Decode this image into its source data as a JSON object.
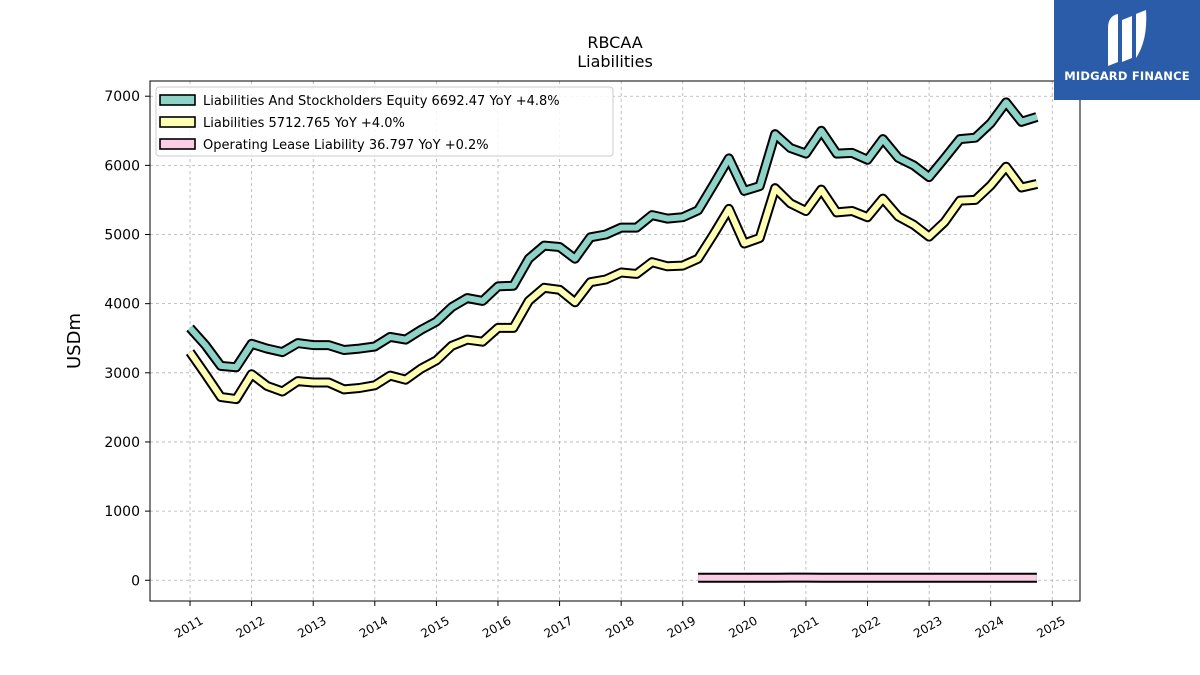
{
  "brand": {
    "name": "MIDGARD FINANCE"
  },
  "colors": {
    "equity": "#8dd3c7",
    "liabilities": "#ffffb3",
    "lease": "#fccde5",
    "logo_bg": "#2a5caa"
  },
  "chart_data": {
    "type": "line",
    "title": "RBCAA",
    "subtitle": "Liabilities",
    "ylabel": "USDm",
    "xlabel": "",
    "ylim": [
      -300,
      7220
    ],
    "xlim": [
      2010.35,
      2025.45
    ],
    "y_ticks": [
      0,
      1000,
      2000,
      3000,
      4000,
      5000,
      6000,
      7000
    ],
    "x_ticks": [
      "2011",
      "2012",
      "2013",
      "2014",
      "2015",
      "2016",
      "2017",
      "2018",
      "2019",
      "2020",
      "2021",
      "2022",
      "2023",
      "2024",
      "2025"
    ],
    "grid": true,
    "legend_position": "top-left",
    "legend": [
      "Liabilities And Stockholders Equity  6692.47 YoY +4.8%",
      "Liabilities  5712.765 YoY +4.0%",
      "Operating Lease Liability  36.797 YoY +0.2%"
    ],
    "series": [
      {
        "name": "Liabilities And Stockholders Equity",
        "x": [
          2011.0,
          2011.25,
          2011.5,
          2011.75,
          2012.0,
          2012.25,
          2012.5,
          2012.75,
          2013.0,
          2013.25,
          2013.5,
          2013.75,
          2014.0,
          2014.25,
          2014.5,
          2014.75,
          2015.0,
          2015.25,
          2015.5,
          2015.75,
          2016.0,
          2016.25,
          2016.5,
          2016.75,
          2017.0,
          2017.25,
          2017.5,
          2017.75,
          2018.0,
          2018.25,
          2018.5,
          2018.75,
          2019.0,
          2019.25,
          2019.5,
          2019.75,
          2020.0,
          2020.25,
          2020.5,
          2020.75,
          2021.0,
          2021.25,
          2021.5,
          2021.75,
          2022.0,
          2022.25,
          2022.5,
          2022.75,
          2023.0,
          2023.25,
          2023.5,
          2023.75,
          2024.0,
          2024.25,
          2024.5,
          2024.75
        ],
        "values": [
          3650,
          3400,
          3100,
          3080,
          3420,
          3350,
          3300,
          3430,
          3400,
          3400,
          3330,
          3350,
          3380,
          3520,
          3480,
          3620,
          3740,
          3950,
          4080,
          4040,
          4250,
          4260,
          4650,
          4840,
          4820,
          4650,
          4960,
          5000,
          5100,
          5100,
          5280,
          5230,
          5250,
          5350,
          5720,
          6100,
          5630,
          5700,
          6450,
          6250,
          6170,
          6500,
          6170,
          6180,
          6080,
          6380,
          6110,
          6000,
          5830,
          6100,
          6380,
          6400,
          6610,
          6910,
          6630,
          6700
        ]
      },
      {
        "name": "Liabilities",
        "x": [
          2011.0,
          2011.25,
          2011.5,
          2011.75,
          2012.0,
          2012.25,
          2012.5,
          2012.75,
          2013.0,
          2013.25,
          2013.5,
          2013.75,
          2014.0,
          2014.25,
          2014.5,
          2014.75,
          2015.0,
          2015.25,
          2015.5,
          2015.75,
          2016.0,
          2016.25,
          2016.5,
          2016.75,
          2017.0,
          2017.25,
          2017.5,
          2017.75,
          2018.0,
          2018.25,
          2018.5,
          2018.75,
          2019.0,
          2019.25,
          2019.5,
          2019.75,
          2020.0,
          2020.25,
          2020.5,
          2020.75,
          2021.0,
          2021.25,
          2021.5,
          2021.75,
          2022.0,
          2022.25,
          2022.5,
          2022.75,
          2023.0,
          2023.25,
          2023.5,
          2023.75,
          2024.0,
          2024.25,
          2024.5,
          2024.75
        ],
        "values": [
          3300,
          2980,
          2650,
          2620,
          2980,
          2810,
          2730,
          2880,
          2860,
          2860,
          2760,
          2780,
          2820,
          2960,
          2900,
          3060,
          3180,
          3390,
          3480,
          3450,
          3650,
          3650,
          4040,
          4230,
          4200,
          4020,
          4310,
          4350,
          4450,
          4430,
          4600,
          4540,
          4550,
          4650,
          5000,
          5370,
          4870,
          4950,
          5670,
          5450,
          5340,
          5650,
          5320,
          5340,
          5250,
          5520,
          5260,
          5140,
          4970,
          5180,
          5490,
          5500,
          5710,
          5980,
          5680,
          5730
        ]
      },
      {
        "name": "Operating Lease Liability",
        "x": [
          2019.25,
          2019.5,
          2019.75,
          2020.0,
          2020.25,
          2020.5,
          2020.75,
          2021.0,
          2021.25,
          2021.5,
          2021.75,
          2022.0,
          2022.25,
          2022.5,
          2022.75,
          2023.0,
          2023.25,
          2023.5,
          2023.75,
          2024.0,
          2024.25,
          2024.5,
          2024.75
        ],
        "values": [
          36,
          36,
          35,
          35,
          35,
          35,
          38,
          38,
          37,
          37,
          37,
          36,
          37,
          37,
          37,
          36,
          36,
          36,
          36,
          36,
          36,
          36,
          37
        ]
      }
    ]
  }
}
